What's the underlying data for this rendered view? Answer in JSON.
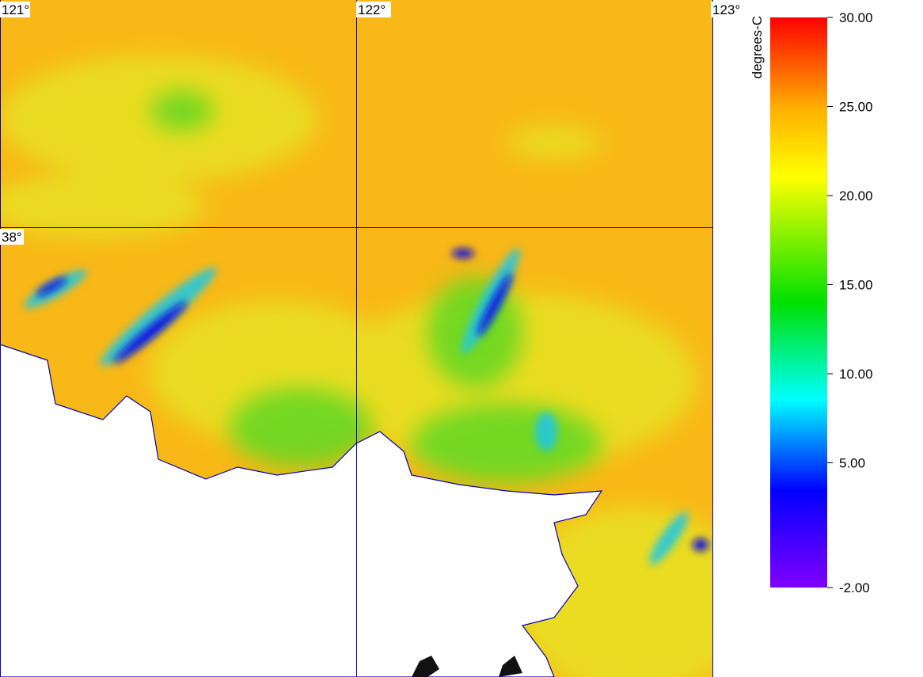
{
  "graticule": {
    "lon_labels": [
      "121°",
      "122°",
      "123°"
    ],
    "lat_labels": [
      "38°"
    ]
  },
  "colorbar": {
    "label": "degrees-C",
    "lim": [
      -2,
      30
    ],
    "ticks": [
      {
        "value": 30,
        "label": "30.00"
      },
      {
        "value": 25,
        "label": "25.00"
      },
      {
        "value": 20,
        "label": "20.00"
      },
      {
        "value": 15,
        "label": "15.00"
      },
      {
        "value": 10,
        "label": "10.00"
      },
      {
        "value": 5,
        "label": "5.00"
      },
      {
        "value": -2,
        "label": "-2.00"
      }
    ]
  }
}
